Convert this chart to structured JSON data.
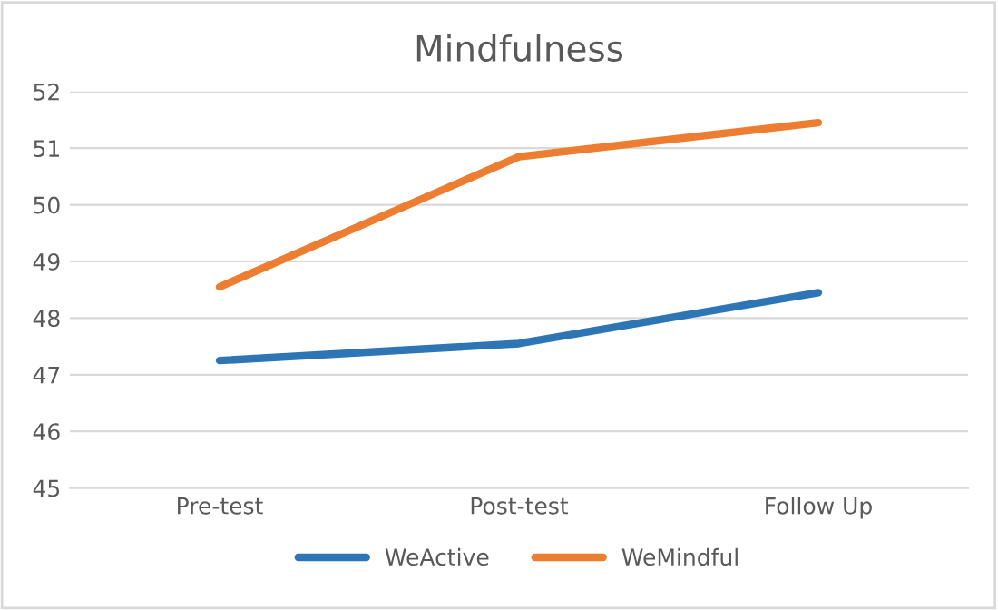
{
  "chart_data": {
    "type": "line",
    "title": "Mindfulness",
    "categories": [
      "Pre-test",
      "Post-test",
      "Follow Up"
    ],
    "series": [
      {
        "name": "WeActive",
        "color": "#2e75b6",
        "values": [
          47.25,
          47.55,
          48.45
        ]
      },
      {
        "name": "WeMindful",
        "color": "#ed7d31",
        "values": [
          48.55,
          50.85,
          51.45
        ]
      }
    ],
    "ylim": [
      45,
      52
    ],
    "yticks": [
      45,
      46,
      47,
      48,
      49,
      50,
      51,
      52
    ],
    "grid": "y",
    "legend": "bottom",
    "marker": "none",
    "line_style": "solid"
  }
}
